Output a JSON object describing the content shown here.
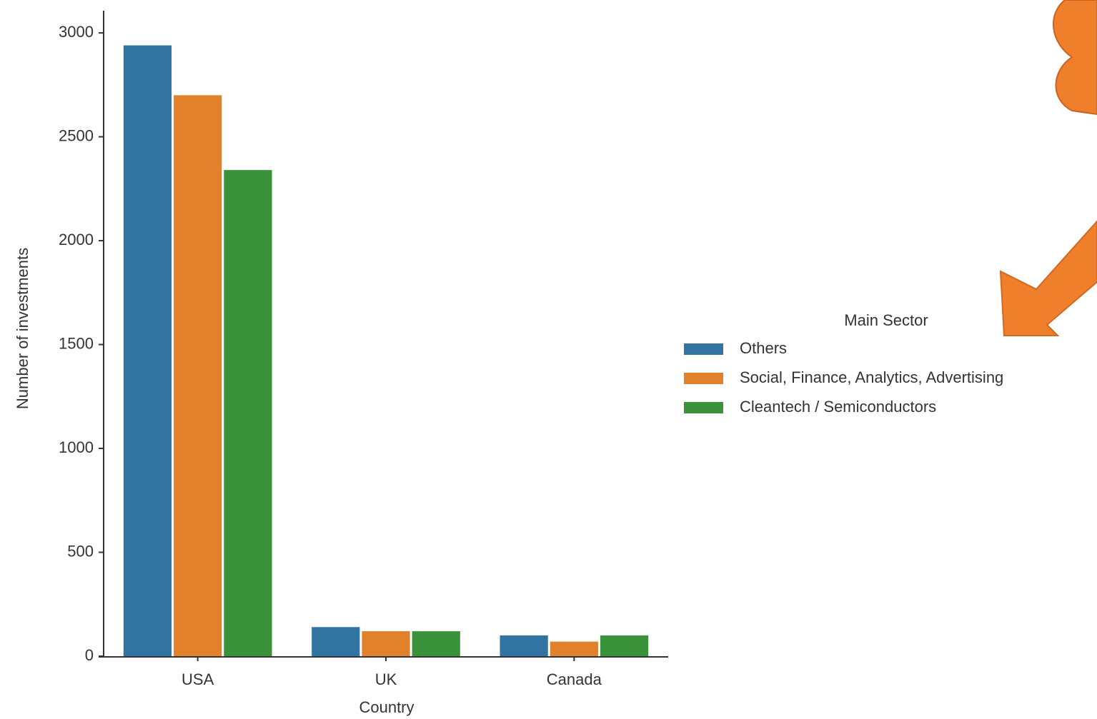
{
  "chart_data": {
    "type": "bar",
    "x_label": "Country",
    "y_label": "Number of investments",
    "categories": [
      "USA",
      "UK",
      "Canada"
    ],
    "legend_title": "Main Sector",
    "legend": "right",
    "series": [
      {
        "name": "Others",
        "color": "#3274a1",
        "values": [
          2940,
          140,
          100
        ]
      },
      {
        "name": "Social, Finance, Analytics, Advertising",
        "color": "#e1812c",
        "values": [
          2700,
          120,
          70
        ]
      },
      {
        "name": "Cleantech / Semiconductors",
        "color": "#3a923a",
        "values": [
          2340,
          120,
          100
        ]
      }
    ],
    "ylim": [
      0,
      3100
    ],
    "yticks": [
      0,
      500,
      1000,
      1500,
      2000,
      2500,
      3000
    ],
    "grid": false
  }
}
